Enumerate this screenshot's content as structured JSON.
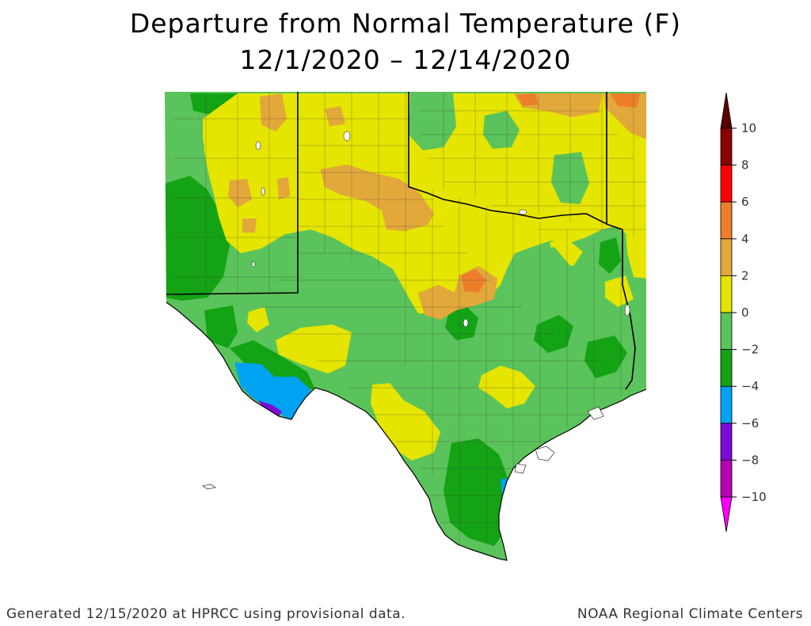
{
  "title": {
    "line1": "Departure from Normal Temperature (F)",
    "line2": "12/1/2020 – 12/14/2020"
  },
  "legend": {
    "ticks": [
      "10",
      "8",
      "6",
      "4",
      "2",
      "0",
      "−2",
      "−4",
      "−6",
      "−8",
      "−10"
    ],
    "bins": [
      {
        "range": "8 to 10",
        "color": "#8b0000"
      },
      {
        "range": "6 to 8",
        "color": "#ff0000"
      },
      {
        "range": "4 to 6",
        "color": "#ed7f2b"
      },
      {
        "range": "2 to 4",
        "color": "#e2a83a"
      },
      {
        "range": "0 to 2",
        "color": "#e5e500"
      },
      {
        "range": "-2 to 0",
        "color": "#5bc35b"
      },
      {
        "range": "-4 to -2",
        "color": "#14a314"
      },
      {
        "range": "-6 to -4",
        "color": "#00a2f2"
      },
      {
        "range": "-8 to -6",
        "color": "#7d0bd3"
      },
      {
        "range": "-10 to -8",
        "color": "#b200b2"
      }
    ],
    "top_arrow_color": "#5a0000",
    "bottom_arrow_color": "#ff00ff"
  },
  "footer": {
    "left": "Generated 12/15/2020 at HPRCC using provisional data.",
    "right": "NOAA Regional Climate Centers"
  }
}
